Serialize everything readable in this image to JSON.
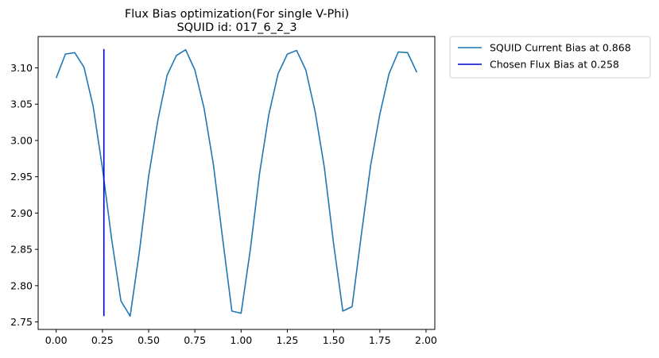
{
  "chart_data": {
    "type": "line",
    "title_line1": "Flux Bias optimization(For single V-Phi)",
    "title_line2": "SQUID id: 017_6_2_3",
    "xlabel": "",
    "ylabel": "",
    "xlim": [
      -0.0975,
      2.0475
    ],
    "ylim": [
      2.7397,
      3.1432
    ],
    "x_ticks": [
      0.0,
      0.25,
      0.5,
      0.75,
      1.0,
      1.25,
      1.5,
      1.75,
      2.0
    ],
    "x_tick_labels": [
      "0.00",
      "0.25",
      "0.50",
      "0.75",
      "1.00",
      "1.25",
      "1.50",
      "1.75",
      "2.00"
    ],
    "y_ticks": [
      2.75,
      2.8,
      2.85,
      2.9,
      2.95,
      3.0,
      3.05,
      3.1
    ],
    "y_tick_labels": [
      "2.75",
      "2.80",
      "2.85",
      "2.90",
      "2.95",
      "3.00",
      "3.05",
      "3.10"
    ],
    "grid": false,
    "legend_placement": "outside-top-right",
    "series": [
      {
        "name": "SQUID Current Bias at 0.868",
        "color": "#1f77b4",
        "x": [
          0.0,
          0.05,
          0.1,
          0.15,
          0.2,
          0.25,
          0.3,
          0.35,
          0.4,
          0.45,
          0.5,
          0.55,
          0.6,
          0.65,
          0.7,
          0.75,
          0.8,
          0.85,
          0.9,
          0.95,
          1.0,
          1.05,
          1.1,
          1.15,
          1.2,
          1.25,
          1.3,
          1.35,
          1.4,
          1.45,
          1.5,
          1.55,
          1.6,
          1.65,
          1.7,
          1.75,
          1.8,
          1.85,
          1.9,
          1.95
        ],
        "y": [
          3.086,
          3.119,
          3.121,
          3.101,
          3.047,
          2.962,
          2.864,
          2.779,
          2.758,
          2.847,
          2.951,
          3.028,
          3.09,
          3.117,
          3.125,
          3.097,
          3.044,
          2.967,
          2.865,
          2.765,
          2.762,
          2.85,
          2.955,
          3.036,
          3.092,
          3.119,
          3.124,
          3.097,
          3.04,
          2.963,
          2.858,
          2.765,
          2.771,
          2.87,
          2.965,
          3.036,
          3.092,
          3.122,
          3.121,
          3.094
        ]
      },
      {
        "name": "Chosen Flux Bias at 0.258",
        "color": "#0000cc",
        "type": "vline",
        "x": 0.258,
        "ymin": 2.758,
        "ymax": 3.126
      }
    ]
  }
}
